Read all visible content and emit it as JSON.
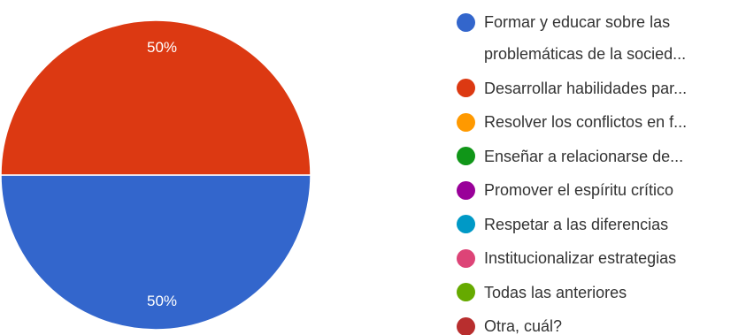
{
  "chart_data": {
    "type": "pie",
    "categories": [
      "Formar y educar sobre las problemáticas de la socied...",
      "Desarrollar habilidades par...",
      "Resolver los conflictos en f...",
      "Enseñar a relacionarse de...",
      "Promover el espíritu crítico",
      "Respetar a las diferencias",
      "Institucionalizar estrategias",
      "Todas las anteriores",
      "Otra, cuál?"
    ],
    "values": [
      50,
      50,
      0,
      0,
      0,
      0,
      0,
      0,
      0
    ],
    "value_labels": [
      "50%",
      "50%",
      null,
      null,
      null,
      null,
      null,
      null,
      null
    ],
    "colors": [
      "#3366cc",
      "#dc3912",
      "#ff9900",
      "#109618",
      "#990099",
      "#0099c6",
      "#dd4477",
      "#66aa00",
      "#b82e2e"
    ],
    "legend": "right"
  }
}
